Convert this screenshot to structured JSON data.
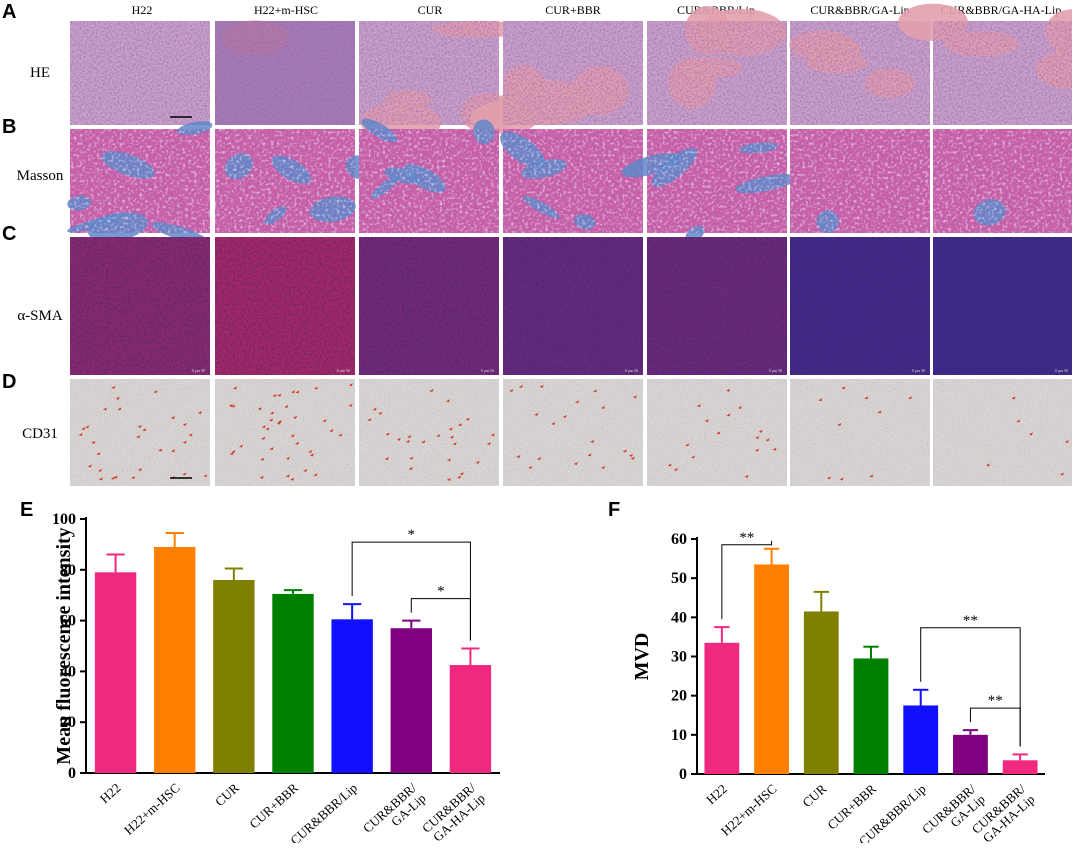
{
  "figure": {
    "panel_letters": [
      "A",
      "B",
      "C",
      "D",
      "E",
      "F"
    ],
    "groups": [
      "H22",
      "H22+m-HSC",
      "CUR",
      "CUR+BBR",
      "CUR&BBR/Lip",
      "CUR&BBR/GA-Lip",
      "CUR&BBR/GA-HA-Lip"
    ],
    "row_labels": [
      "HE",
      "Masson",
      "α-SMA",
      "CD31"
    ],
    "tile_scale_text": "0  μm  50"
  },
  "colors": {
    "he_bg": "#c9a3c8",
    "he_dark": "#7b4d96",
    "he_pink": "#e2a0ad",
    "masson_bg": "#c55fa8",
    "masson_blue": "#5f86c9",
    "sma_bg": "#3a2a8a",
    "sma_red": "#c4285a",
    "cd31_bg": "#d8d4d4",
    "cd31_dot": "#d23a23",
    "bar_colors": [
      "#f0287f",
      "#ff8000",
      "#808000",
      "#008000",
      "#1010ff",
      "#800080",
      "#f0287f"
    ]
  },
  "chart_data": [
    {
      "type": "bar",
      "panel": "E",
      "categories": [
        "H22",
        "H22+m-HSC",
        "CUR",
        "CUR+BBR",
        "CUR&BBR/Lip",
        "CUR&BBR/ GA-Lip",
        "CUR&BBR/ GA-HA-Lip"
      ],
      "values": [
        79,
        89,
        76,
        70.5,
        60.5,
        57,
        42.5
      ],
      "errors": [
        7,
        5.5,
        4.5,
        1.5,
        6,
        3,
        6.5
      ],
      "ylabel": "Mean fluorescence intensity",
      "ylim": [
        0,
        100
      ],
      "yticks": [
        0,
        20,
        40,
        60,
        80,
        100
      ],
      "significance": [
        {
          "from": 4,
          "to": 6,
          "label": "*"
        },
        {
          "from": 5,
          "to": 6,
          "label": "*"
        }
      ]
    },
    {
      "type": "bar",
      "panel": "F",
      "categories": [
        "H22",
        "H22+m-HSC",
        "CUR",
        "CUR+BBR",
        "CUR&BBR/Lip",
        "CUR&BBR/ GA-Lip",
        "CUR&BBR/ GA-HA-Lip"
      ],
      "values": [
        33.5,
        53.5,
        41.5,
        29.5,
        17.5,
        10,
        3.5
      ],
      "errors": [
        4,
        4,
        5,
        3,
        4,
        1.2,
        1.5
      ],
      "ylabel": "MVD",
      "ylim": [
        0,
        60
      ],
      "yticks": [
        0,
        10,
        20,
        30,
        40,
        50,
        60
      ],
      "significance": [
        {
          "from": 0,
          "to": 1,
          "label": "**"
        },
        {
          "from": 4,
          "to": 6,
          "label": "**"
        },
        {
          "from": 5,
          "to": 6,
          "label": "**"
        }
      ]
    }
  ]
}
